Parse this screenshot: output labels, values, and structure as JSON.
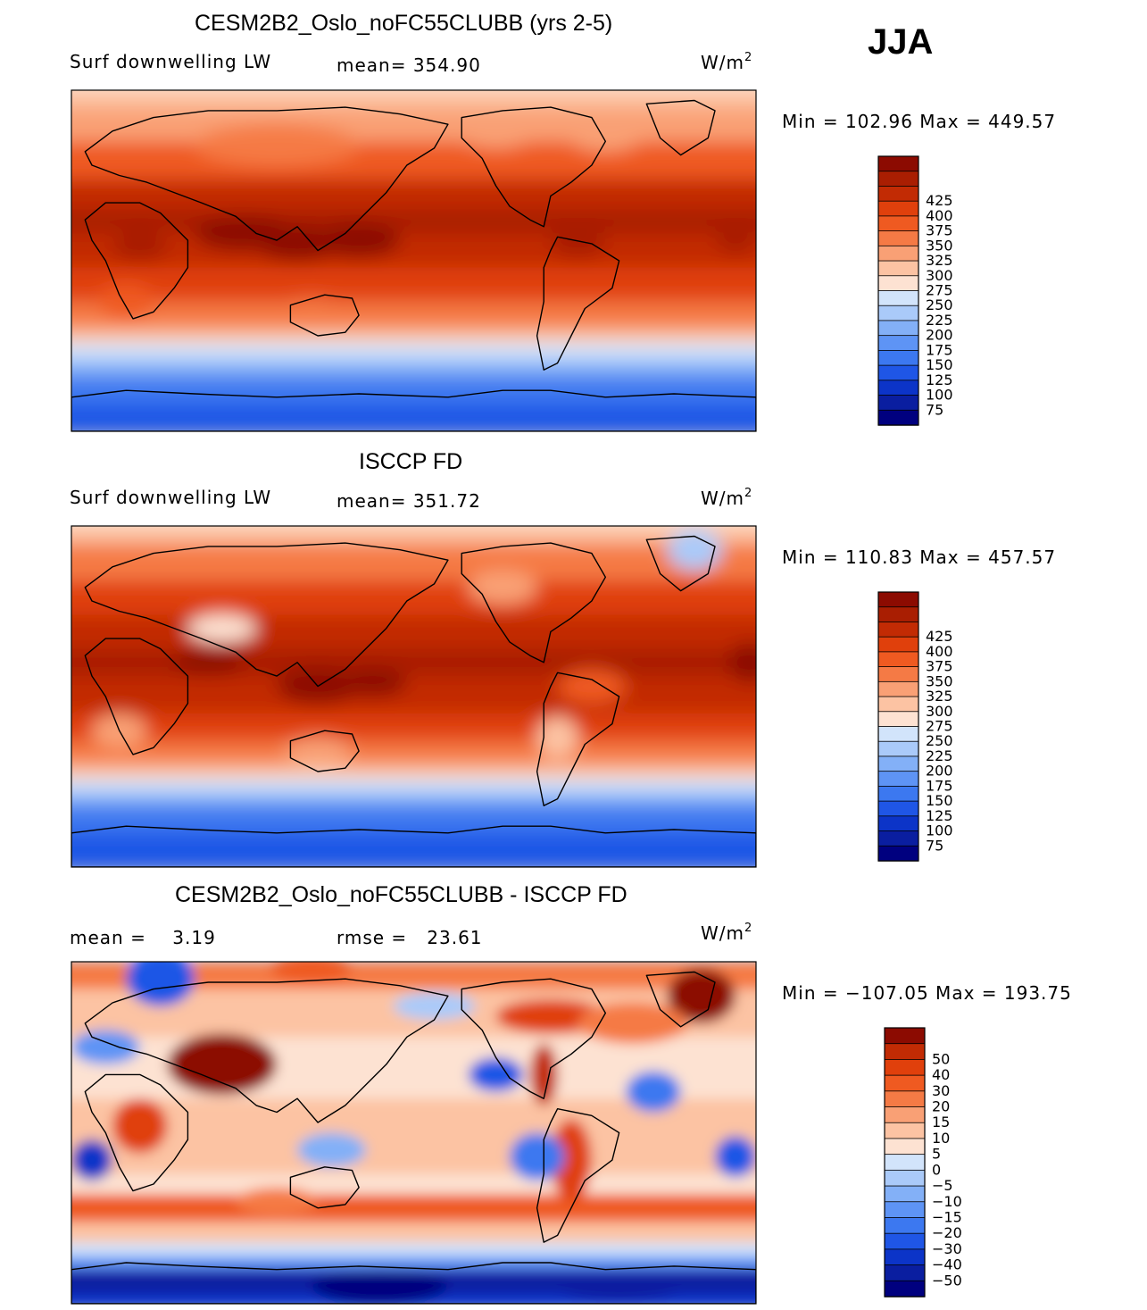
{
  "season": "JJA",
  "colors": {
    "abs_scale": [
      "#00007f",
      "#0a1ea0",
      "#0c34c8",
      "#1f56e6",
      "#3c78f0",
      "#5e94f5",
      "#83b0f7",
      "#aacaf9",
      "#d2e4fb",
      "#fde2d2",
      "#fcc3a3",
      "#f9a075",
      "#f57a45",
      "#ef5a21",
      "#e0400c",
      "#c22b04",
      "#a91e02",
      "#8c0b01"
    ],
    "diff_scale": [
      "#00007f",
      "#0a1ea0",
      "#0c34c8",
      "#1f56e6",
      "#3c78f0",
      "#5e94f5",
      "#83b0f7",
      "#aacaf9",
      "#d2e4fb",
      "#fde2d2",
      "#fcc3a3",
      "#f9a075",
      "#f57a45",
      "#ef5a21",
      "#e0400c",
      "#c22b04",
      "#8c0b01"
    ]
  },
  "panels": [
    {
      "title": "CESM2B2_Oslo_noFC55CLUBB (yrs 2-5)",
      "left_label": "Surf downwelling LW",
      "mid_label": "mean= 354.90",
      "units": "W/m",
      "units_exp": "2",
      "minmax": "Min = 102.96 Max = 449.57",
      "colorbar_labels": [
        "425",
        "400",
        "375",
        "350",
        "325",
        "300",
        "275",
        "250",
        "225",
        "200",
        "175",
        "150",
        "125",
        "100",
        "75"
      ],
      "map_field": "model",
      "map_description": "Surface downwelling longwave radiation, model climatology"
    },
    {
      "title": "ISCCP FD",
      "left_label": "Surf downwelling LW",
      "mid_label": "mean= 351.72",
      "units": "W/m",
      "units_exp": "2",
      "minmax": "Min = 110.83 Max = 457.57",
      "colorbar_labels": [
        "425",
        "400",
        "375",
        "350",
        "325",
        "300",
        "275",
        "250",
        "225",
        "200",
        "175",
        "150",
        "125",
        "100",
        "75"
      ],
      "map_field": "obs",
      "map_description": "Surface downwelling longwave radiation, observations"
    },
    {
      "title": "CESM2B2_Oslo_noFC55CLUBB - ISCCP FD",
      "left_label": "mean =    3.19",
      "mid_label": "rmse =   23.61",
      "units": "W/m",
      "units_exp": "2",
      "minmax": "Min = −107.05 Max = 193.75",
      "colorbar_labels": [
        "50",
        "40",
        "30",
        "20",
        "15",
        "10",
        "5",
        "0",
        "−5",
        "−10",
        "−15",
        "−20",
        "−30",
        "−40",
        "−50"
      ],
      "map_field": "diff",
      "map_description": "Difference model minus observations"
    }
  ]
}
